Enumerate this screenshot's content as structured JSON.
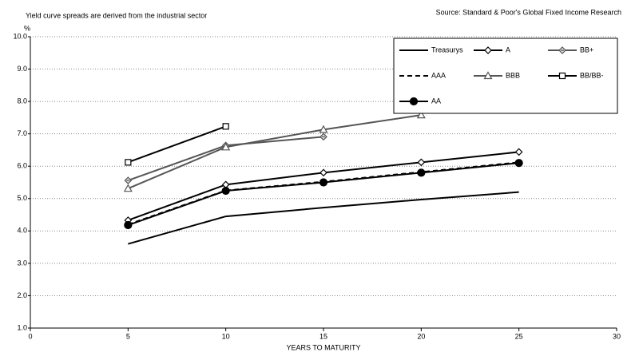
{
  "chart_data": {
    "type": "line",
    "note": "Yield curve spreads are derived from the industrial sector",
    "source": "Source: Standard & Poor's Global Fixed Income Research",
    "ylabel": "%",
    "xlabel": "YEARS TO MATURITY",
    "x": [
      5,
      10,
      15,
      20,
      25
    ],
    "series": [
      {
        "name": "Treasurys",
        "color": "#000000",
        "marker": "none",
        "dashed": false,
        "values": [
          3.6,
          4.45,
          4.72,
          4.97,
          5.2
        ]
      },
      {
        "name": "A",
        "color": "#000000",
        "marker": "diamond",
        "dashed": false,
        "values": [
          4.33,
          5.43,
          5.8,
          6.12,
          6.44
        ]
      },
      {
        "name": "BB+",
        "color": "#555555",
        "marker": "star",
        "dashed": false,
        "values": [
          5.56,
          6.64,
          6.91,
          null,
          null
        ]
      },
      {
        "name": "AAA",
        "color": "#000000",
        "marker": "none",
        "dashed": true,
        "values": [
          4.2,
          5.25,
          5.52,
          5.82,
          6.12
        ]
      },
      {
        "name": "BBB",
        "color": "#555555",
        "marker": "triangle",
        "dashed": false,
        "values": [
          5.31,
          6.59,
          7.13,
          7.58,
          null
        ]
      },
      {
        "name": "BB/BB-",
        "color": "#000000",
        "marker": "square",
        "dashed": false,
        "values": [
          6.12,
          7.23,
          null,
          null,
          null
        ]
      },
      {
        "name": "AA",
        "color": "#000000",
        "marker": "circle",
        "dashed": false,
        "values": [
          4.18,
          5.24,
          5.5,
          5.8,
          6.1
        ]
      }
    ],
    "xlim": [
      0,
      30
    ],
    "xticks": [
      0,
      5,
      10,
      15,
      20,
      25,
      30
    ],
    "ylim": [
      1,
      10
    ],
    "yticks": [
      {
        "value": 1,
        "label": "1.0"
      },
      {
        "value": 2,
        "label": "2.0"
      },
      {
        "value": 3,
        "label": "3.0"
      },
      {
        "value": 4,
        "label": "4.0"
      },
      {
        "value": 5,
        "label": "5.0"
      },
      {
        "value": 6,
        "label": "6.0"
      },
      {
        "value": 7,
        "label": "7.0"
      },
      {
        "value": 8,
        "label": "8.0"
      },
      {
        "value": 9,
        "label": "9.0"
      },
      {
        "value": 10,
        "label": "10.0"
      }
    ],
    "grid": true
  }
}
